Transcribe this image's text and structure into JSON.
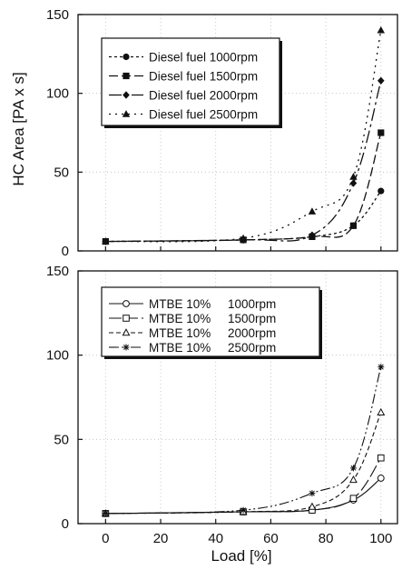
{
  "chart_data": [
    {
      "type": "line",
      "ylabel": "HC Area [PA x s]",
      "xlabel": "",
      "xlim": [
        -10,
        106
      ],
      "ylim": [
        0,
        150
      ],
      "yticks": [
        "0",
        "50",
        "100",
        "150"
      ],
      "grid": true,
      "legend_position": "top-left",
      "series": [
        {
          "name": "Diesel fuel 1000rpm",
          "x": [
            0,
            50,
            75,
            90,
            100
          ],
          "y": [
            6,
            7,
            9,
            16,
            38
          ]
        },
        {
          "name": "Diesel fuel 1500rpm",
          "x": [
            0,
            50,
            75,
            90,
            100
          ],
          "y": [
            6,
            7,
            9,
            16,
            75
          ]
        },
        {
          "name": "Diesel fuel 2000rpm",
          "x": [
            0,
            50,
            75,
            90,
            100
          ],
          "y": [
            6,
            7,
            10,
            43,
            108
          ]
        },
        {
          "name": "Diesel fuel 2500rpm",
          "x": [
            0,
            50,
            75,
            90,
            100
          ],
          "y": [
            6,
            8,
            25,
            47,
            140
          ]
        }
      ]
    },
    {
      "type": "line",
      "ylabel": "",
      "xlabel": "Load [%]",
      "xlim": [
        -10,
        106
      ],
      "ylim": [
        0,
        150
      ],
      "yticks": [
        "0",
        "50",
        "100",
        "150"
      ],
      "xticks": [
        "0",
        "20",
        "40",
        "60",
        "80",
        "100"
      ],
      "grid": true,
      "legend_position": "top-left",
      "series": [
        {
          "name": "MTBE 10%     1000rpm",
          "x": [
            0,
            50,
            75,
            90,
            100
          ],
          "y": [
            6,
            7,
            8,
            14,
            27
          ]
        },
        {
          "name": "MTBE 10%     1500rpm",
          "x": [
            0,
            50,
            75,
            90,
            100
          ],
          "y": [
            6,
            7,
            8,
            15,
            39
          ]
        },
        {
          "name": "MTBE 10%     2000rpm",
          "x": [
            0,
            50,
            75,
            90,
            100
          ],
          "y": [
            6,
            7,
            10,
            26,
            66
          ]
        },
        {
          "name": "MTBE 10%     2500rpm",
          "x": [
            0,
            50,
            75,
            90,
            100
          ],
          "y": [
            6,
            8,
            18,
            33,
            93
          ]
        }
      ]
    }
  ]
}
